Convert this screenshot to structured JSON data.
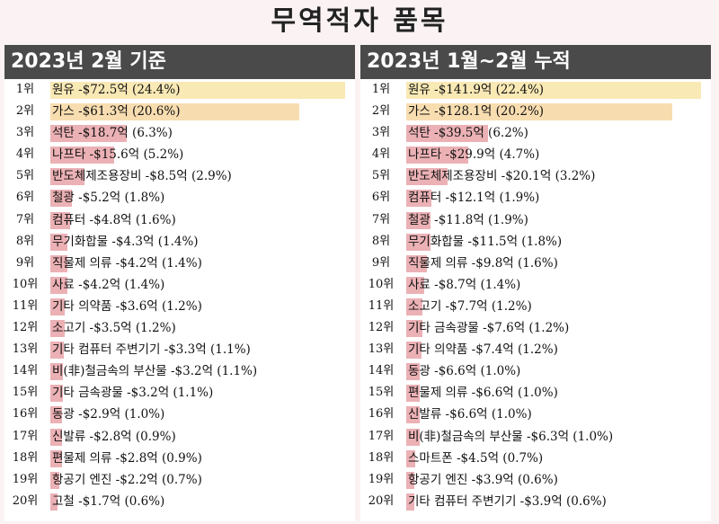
{
  "title": "무역적자 품목",
  "colors": {
    "bar_top1": "#f9e9b5",
    "bar_top2": "#f8ddb0",
    "bar_default": "#ebb1b5",
    "header_bg": "#4a4a4a"
  },
  "chart_data": [
    {
      "type": "bar",
      "title": "2023년 2월 기준",
      "max_value": 72.5,
      "items": [
        {
          "rank": "1위",
          "label": "원유 -$72.5억 (24.4%)",
          "value": 72.5
        },
        {
          "rank": "2위",
          "label": "가스 -$61.3억 (20.6%)",
          "value": 61.3
        },
        {
          "rank": "3위",
          "label": "석탄 -$18.7억 (6.3%)",
          "value": 18.7
        },
        {
          "rank": "4위",
          "label": "나프타 -$15.6억 (5.2%)",
          "value": 15.6
        },
        {
          "rank": "5위",
          "label": "반도체제조용장비 -$8.5억 (2.9%)",
          "value": 8.5
        },
        {
          "rank": "6위",
          "label": "철광 -$5.2억 (1.8%)",
          "value": 5.2
        },
        {
          "rank": "7위",
          "label": "컴퓨터 -$4.8억 (1.6%)",
          "value": 4.8
        },
        {
          "rank": "8위",
          "label": "무기화합물 -$4.3억 (1.4%)",
          "value": 4.3
        },
        {
          "rank": "9위",
          "label": "직물제 의류 -$4.2억 (1.4%)",
          "value": 4.2
        },
        {
          "rank": "10위",
          "label": "사료 -$4.2억 (1.4%)",
          "value": 4.2
        },
        {
          "rank": "11위",
          "label": "기타 의약품 -$3.6억 (1.2%)",
          "value": 3.6
        },
        {
          "rank": "12위",
          "label": "소고기 -$3.5억 (1.2%)",
          "value": 3.5
        },
        {
          "rank": "13위",
          "label": "기타 컴퓨터 주변기기 -$3.3억 (1.1%)",
          "value": 3.3
        },
        {
          "rank": "14위",
          "label": "비(非)철금속의 부산물 -$3.2억 (1.1%)",
          "value": 3.2
        },
        {
          "rank": "15위",
          "label": "기타 금속광물 -$3.2억 (1.1%)",
          "value": 3.2
        },
        {
          "rank": "16위",
          "label": "동광 -$2.9억 (1.0%)",
          "value": 2.9
        },
        {
          "rank": "17위",
          "label": "신발류 -$2.8억 (0.9%)",
          "value": 2.8
        },
        {
          "rank": "18위",
          "label": "편물제 의류 -$2.8억 (0.9%)",
          "value": 2.8
        },
        {
          "rank": "19위",
          "label": "항공기 엔진 -$2.2억 (0.7%)",
          "value": 2.2
        },
        {
          "rank": "20위",
          "label": "고철 -$1.7억 (0.6%)",
          "value": 1.7
        }
      ]
    },
    {
      "type": "bar",
      "title": "2023년 1월~2월 누적",
      "max_value": 141.9,
      "items": [
        {
          "rank": "1위",
          "label": "원유 -$141.9억 (22.4%)",
          "value": 141.9
        },
        {
          "rank": "2위",
          "label": "가스 -$128.1억 (20.2%)",
          "value": 128.1
        },
        {
          "rank": "3위",
          "label": "석탄 -$39.5억 (6.2%)",
          "value": 39.5
        },
        {
          "rank": "4위",
          "label": "나프타 -$29.9억 (4.7%)",
          "value": 29.9
        },
        {
          "rank": "5위",
          "label": "반도체제조용장비 -$20.1억 (3.2%)",
          "value": 20.1
        },
        {
          "rank": "6위",
          "label": "컴퓨터 -$12.1억 (1.9%)",
          "value": 12.1
        },
        {
          "rank": "7위",
          "label": "철광 -$11.8억 (1.9%)",
          "value": 11.8
        },
        {
          "rank": "8위",
          "label": "무기화합물 -$11.5억 (1.8%)",
          "value": 11.5
        },
        {
          "rank": "9위",
          "label": "직물제 의류 -$9.8억 (1.6%)",
          "value": 9.8
        },
        {
          "rank": "10위",
          "label": "사료 -$8.7억 (1.4%)",
          "value": 8.7
        },
        {
          "rank": "11위",
          "label": "소고기 -$7.7억 (1.2%)",
          "value": 7.7
        },
        {
          "rank": "12위",
          "label": "기타 금속광물 -$7.6억 (1.2%)",
          "value": 7.6
        },
        {
          "rank": "13위",
          "label": "기타 의약품 -$7.4억 (1.2%)",
          "value": 7.4
        },
        {
          "rank": "14위",
          "label": "동광 -$6.6억 (1.0%)",
          "value": 6.6
        },
        {
          "rank": "15위",
          "label": "편물제 의류 -$6.6억 (1.0%)",
          "value": 6.6
        },
        {
          "rank": "16위",
          "label": "신발류 -$6.6억 (1.0%)",
          "value": 6.6
        },
        {
          "rank": "17위",
          "label": "비(非)철금속의 부산물 -$6.3억 (1.0%)",
          "value": 6.3
        },
        {
          "rank": "18위",
          "label": "스마트폰 -$4.5억 (0.7%)",
          "value": 4.5
        },
        {
          "rank": "19위",
          "label": "항공기 엔진 -$3.9억 (0.6%)",
          "value": 3.9
        },
        {
          "rank": "20위",
          "label": "기타 컴퓨터 주변기기 -$3.9억 (0.6%)",
          "value": 3.9
        }
      ]
    }
  ]
}
